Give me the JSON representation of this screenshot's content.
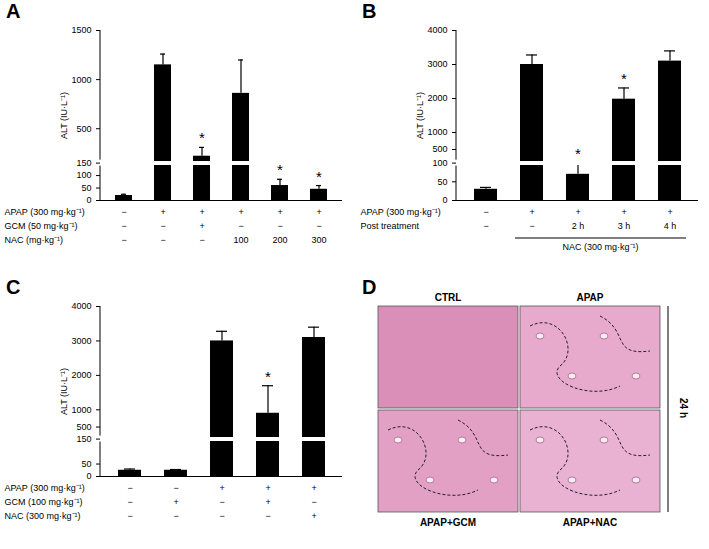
{
  "chart_data": [
    {
      "type": "bar",
      "title": "A",
      "y_label": "ALT (IU·L⁻¹)",
      "categories": [
        null,
        null,
        null,
        null,
        null,
        null
      ],
      "values": [
        20,
        1150,
        220,
        860,
        60,
        45
      ],
      "errors": [
        5,
        110,
        90,
        340,
        25,
        15
      ],
      "color": "#000000",
      "ylim": [
        0,
        1500
      ],
      "ybreak": 150,
      "yticks": [
        0,
        50,
        100,
        150,
        500,
        1000,
        1500
      ],
      "annotations": [
        {
          "index": 2,
          "text": "*"
        },
        {
          "index": 4,
          "text": "*"
        },
        {
          "index": 5,
          "text": "*"
        }
      ],
      "condition_rows": [
        {
          "label": "APAP (300 mg·kg⁻¹)",
          "values": [
            "−",
            "+",
            "+",
            "+",
            "+",
            "+"
          ]
        },
        {
          "label": "GCM (50 mg·kg⁻¹)",
          "values": [
            "−",
            "−",
            "+",
            "−",
            "−",
            "−"
          ]
        },
        {
          "label": "NAC (mg·kg⁻¹)",
          "values": [
            "−",
            "−",
            "−",
            "100",
            "200",
            "300"
          ]
        }
      ]
    },
    {
      "type": "bar",
      "title": "B",
      "y_label": "ALT (IU·L⁻¹)",
      "categories": [
        null,
        null,
        null,
        null,
        null
      ],
      "values": [
        30,
        3000,
        70,
        1980,
        3100
      ],
      "errors": [
        5,
        280,
        30,
        330,
        300
      ],
      "color": "#000000",
      "ylim": [
        0,
        4000
      ],
      "ybreak": 100,
      "yticks": [
        0,
        50,
        100,
        500,
        1000,
        2000,
        3000,
        4000
      ],
      "annotations": [
        {
          "index": 2,
          "text": "*"
        },
        {
          "index": 3,
          "text": "*"
        }
      ],
      "condition_rows": [
        {
          "label": "APAP (300 mg·kg⁻¹)",
          "values": [
            "−",
            "+",
            "+",
            "+",
            "+"
          ]
        },
        {
          "label": "Post treatment",
          "values": [
            "−",
            "−",
            "2 h",
            "3 h",
            "4 h"
          ]
        }
      ],
      "spans": [
        {
          "label": "NAC (300 mg·kg⁻¹)",
          "from": 1,
          "to": 4
        }
      ]
    },
    {
      "type": "bar",
      "title": "C",
      "y_label": "ALT (IU·L⁻¹)",
      "categories": [
        null,
        null,
        null,
        null,
        null
      ],
      "values": [
        25,
        25,
        3000,
        900,
        3100
      ],
      "errors": [
        5,
        3,
        280,
        800,
        300
      ],
      "color": "#000000",
      "ylim": [
        0,
        4000
      ],
      "ybreak": 150,
      "yticks": [
        0,
        50,
        150,
        500,
        1000,
        2000,
        3000,
        4000
      ],
      "annotations": [
        {
          "index": 3,
          "text": "*"
        }
      ],
      "condition_rows": [
        {
          "label": "APAP (300 mg·kg⁻¹)",
          "values": [
            "−",
            "−",
            "+",
            "+",
            "+"
          ]
        },
        {
          "label": "GCM (100 mg·kg⁻¹)",
          "values": [
            "−",
            "+",
            "−",
            "+",
            "−"
          ]
        },
        {
          "label": "NAC (300 mg·kg⁻¹)",
          "values": [
            "−",
            "−",
            "−",
            "−",
            "+"
          ]
        }
      ]
    }
  ],
  "image_panel": {
    "title": "D",
    "labels": [
      "CTRL",
      "APAP",
      "APAP+GCM",
      "APAP+NAC"
    ],
    "time_label": "24 h"
  }
}
